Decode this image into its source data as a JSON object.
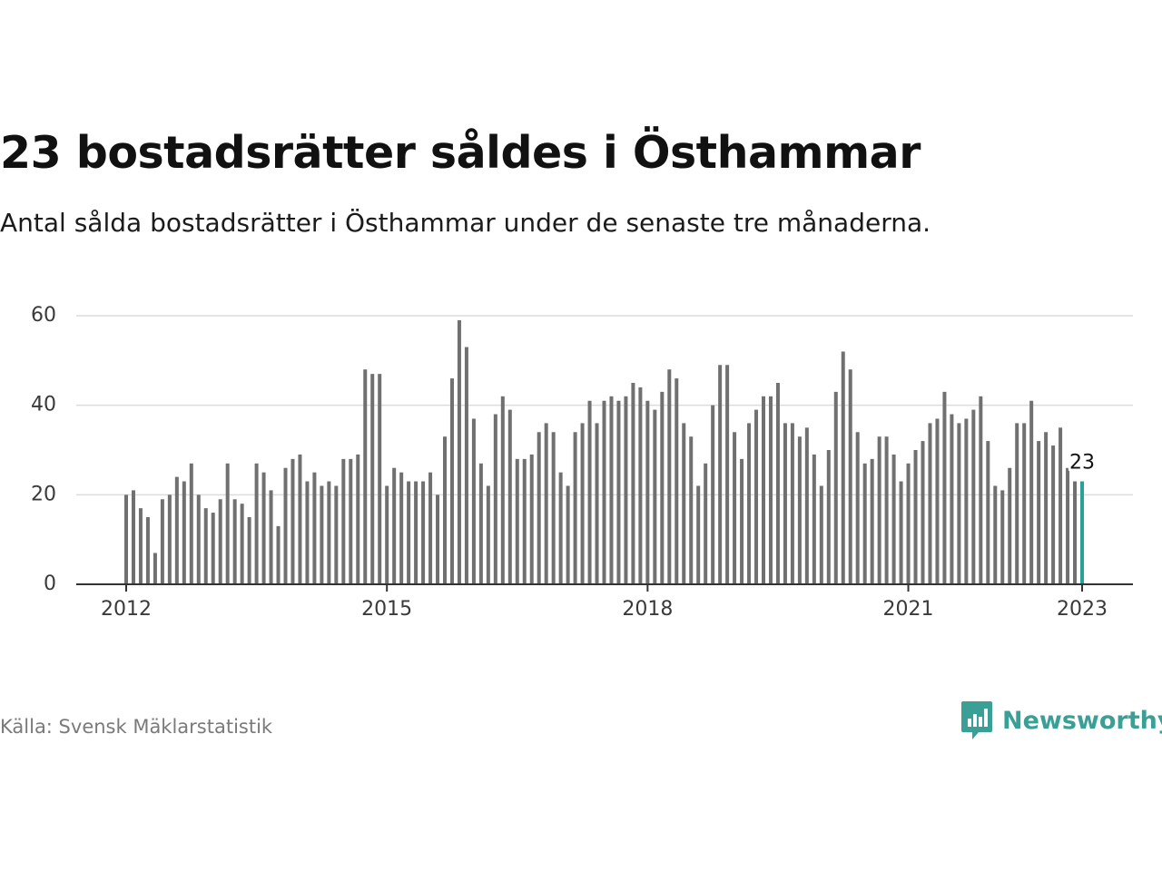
{
  "title": "23 bostadsrätter såldes i Östhammar",
  "subtitle": "Antal sålda bostadsrätter i Östhammar under de senaste tre månaderna.",
  "source": "Källa: Svensk Mäklarstatistik",
  "brand": {
    "name": "Newsworthy",
    "icon": "newsworthy-logo-icon",
    "color": "#3aa095"
  },
  "chart_data": {
    "type": "bar",
    "title": "23 bostadsrätter såldes i Östhammar",
    "subtitle": "Antal sålda bostadsrätter i Östhammar under de senaste tre månaderna.",
    "xlabel": "",
    "ylabel": "",
    "ylim": [
      0,
      60
    ],
    "yticks": [
      "0",
      "20",
      "40",
      "60"
    ],
    "xticks": [
      "2012",
      "2015",
      "2018",
      "2021",
      "2023"
    ],
    "x_start": "2012-01",
    "x_end": "2023-01",
    "grid": true,
    "legend": "none",
    "bar_color": "#707070",
    "highlight_color": "#2aa198",
    "highlight_label": "23",
    "values": [
      20,
      21,
      17,
      15,
      7,
      19,
      20,
      24,
      23,
      27,
      20,
      17,
      16,
      19,
      27,
      19,
      18,
      15,
      27,
      25,
      21,
      13,
      26,
      28,
      29,
      23,
      25,
      22,
      23,
      22,
      28,
      28,
      29,
      48,
      47,
      47,
      22,
      26,
      25,
      23,
      23,
      23,
      25,
      20,
      33,
      46,
      59,
      53,
      37,
      27,
      22,
      38,
      42,
      39,
      28,
      28,
      29,
      34,
      36,
      34,
      25,
      22,
      34,
      36,
      41,
      36,
      41,
      42,
      41,
      42,
      45,
      44,
      41,
      39,
      43,
      48,
      46,
      36,
      33,
      22,
      27,
      40,
      49,
      49,
      34,
      28,
      36,
      39,
      42,
      42,
      45,
      36,
      36,
      33,
      35,
      29,
      22,
      30,
      43,
      52,
      48,
      34,
      27,
      28,
      33,
      33,
      29,
      23,
      27,
      30,
      32,
      36,
      37,
      43,
      38,
      36,
      37,
      39,
      42,
      32,
      22,
      21,
      26,
      36,
      36,
      41,
      32,
      34,
      31,
      35,
      26,
      23,
      23
    ]
  }
}
